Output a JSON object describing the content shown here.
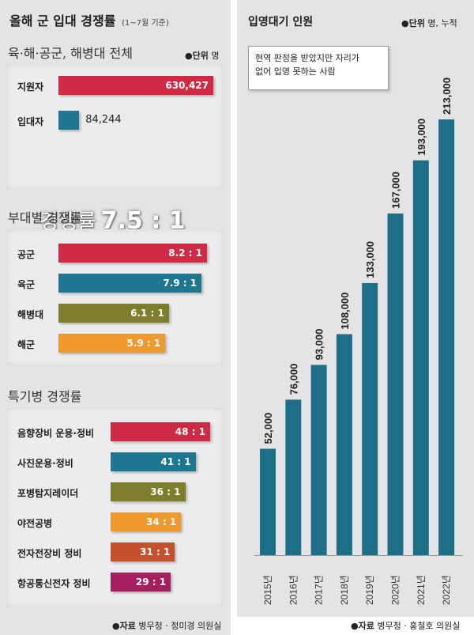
{
  "left": {
    "title": "올해 군 입대 경쟁률",
    "subtitle": "(1~7월 기준)",
    "overall": {
      "section_title": "육·해·공군, 해병대 전체",
      "unit_key": "●단위",
      "unit_value": "명",
      "ratio_label": "경쟁률",
      "ratio_value": "7.5 : 1"
    },
    "branch_section_title": "부대별 경쟁률",
    "specialty_section_title": "특기병 경쟁률",
    "source_key": "●자료",
    "source_value": "병무청 · 정미경 의원실"
  },
  "right": {
    "title": "입영대기 인원",
    "unit_key": "●단위",
    "unit_value": "명, 누적",
    "note_line1": "현역 판정을 받았지만 자리가",
    "note_line2": "없어 입영 못하는 사람",
    "source_key": "●자료",
    "source_value": "병무청 · 홍철호 의원실"
  },
  "chart_data": [
    {
      "type": "bar",
      "orientation": "horizontal",
      "title": "육·해·공군, 해병대 전체",
      "categories": [
        "지원자",
        "입대자"
      ],
      "values": [
        630427,
        84244
      ],
      "value_labels": [
        "630,427",
        "84,244"
      ],
      "colors": [
        "#cf2a45",
        "#1f7690"
      ]
    },
    {
      "type": "bar",
      "orientation": "horizontal",
      "title": "부대별 경쟁률",
      "categories": [
        "공군",
        "육군",
        "해병대",
        "해군"
      ],
      "values": [
        8.2,
        7.9,
        6.1,
        5.9
      ],
      "value_labels": [
        "8.2 : 1",
        "7.9 : 1",
        "6.1 : 1",
        "5.9 : 1"
      ],
      "colors": [
        "#cf2a45",
        "#1f7690",
        "#7c7e2c",
        "#ee9a2e"
      ]
    },
    {
      "type": "bar",
      "orientation": "horizontal",
      "title": "특기병 경쟁률",
      "categories": [
        "음향장비 운용·정비",
        "사진운용·정비",
        "포병탐지레이더",
        "야전공병",
        "전자전장비 정비",
        "항공통신전자 정비"
      ],
      "values": [
        48,
        41,
        36,
        34,
        31,
        29
      ],
      "value_labels": [
        "48 : 1",
        "41 : 1",
        "36 : 1",
        "34 : 1",
        "31 : 1",
        "29 : 1"
      ],
      "colors": [
        "#cf2a45",
        "#1f7690",
        "#7c7e2c",
        "#ee9a2e",
        "#c4502e",
        "#a31f5d"
      ]
    },
    {
      "type": "bar",
      "orientation": "vertical",
      "title": "입영대기 인원",
      "categories": [
        "2015년",
        "2016년",
        "2017년",
        "2018년",
        "2019년",
        "2020년",
        "2021년",
        "2022년"
      ],
      "values": [
        52000,
        76000,
        93000,
        108000,
        133000,
        167000,
        193000,
        213000
      ],
      "value_labels": [
        "52,000",
        "76,000",
        "93,000",
        "108,000",
        "133,000",
        "167,000",
        "193,000",
        "213,000"
      ],
      "color": "#1d6f87"
    }
  ]
}
